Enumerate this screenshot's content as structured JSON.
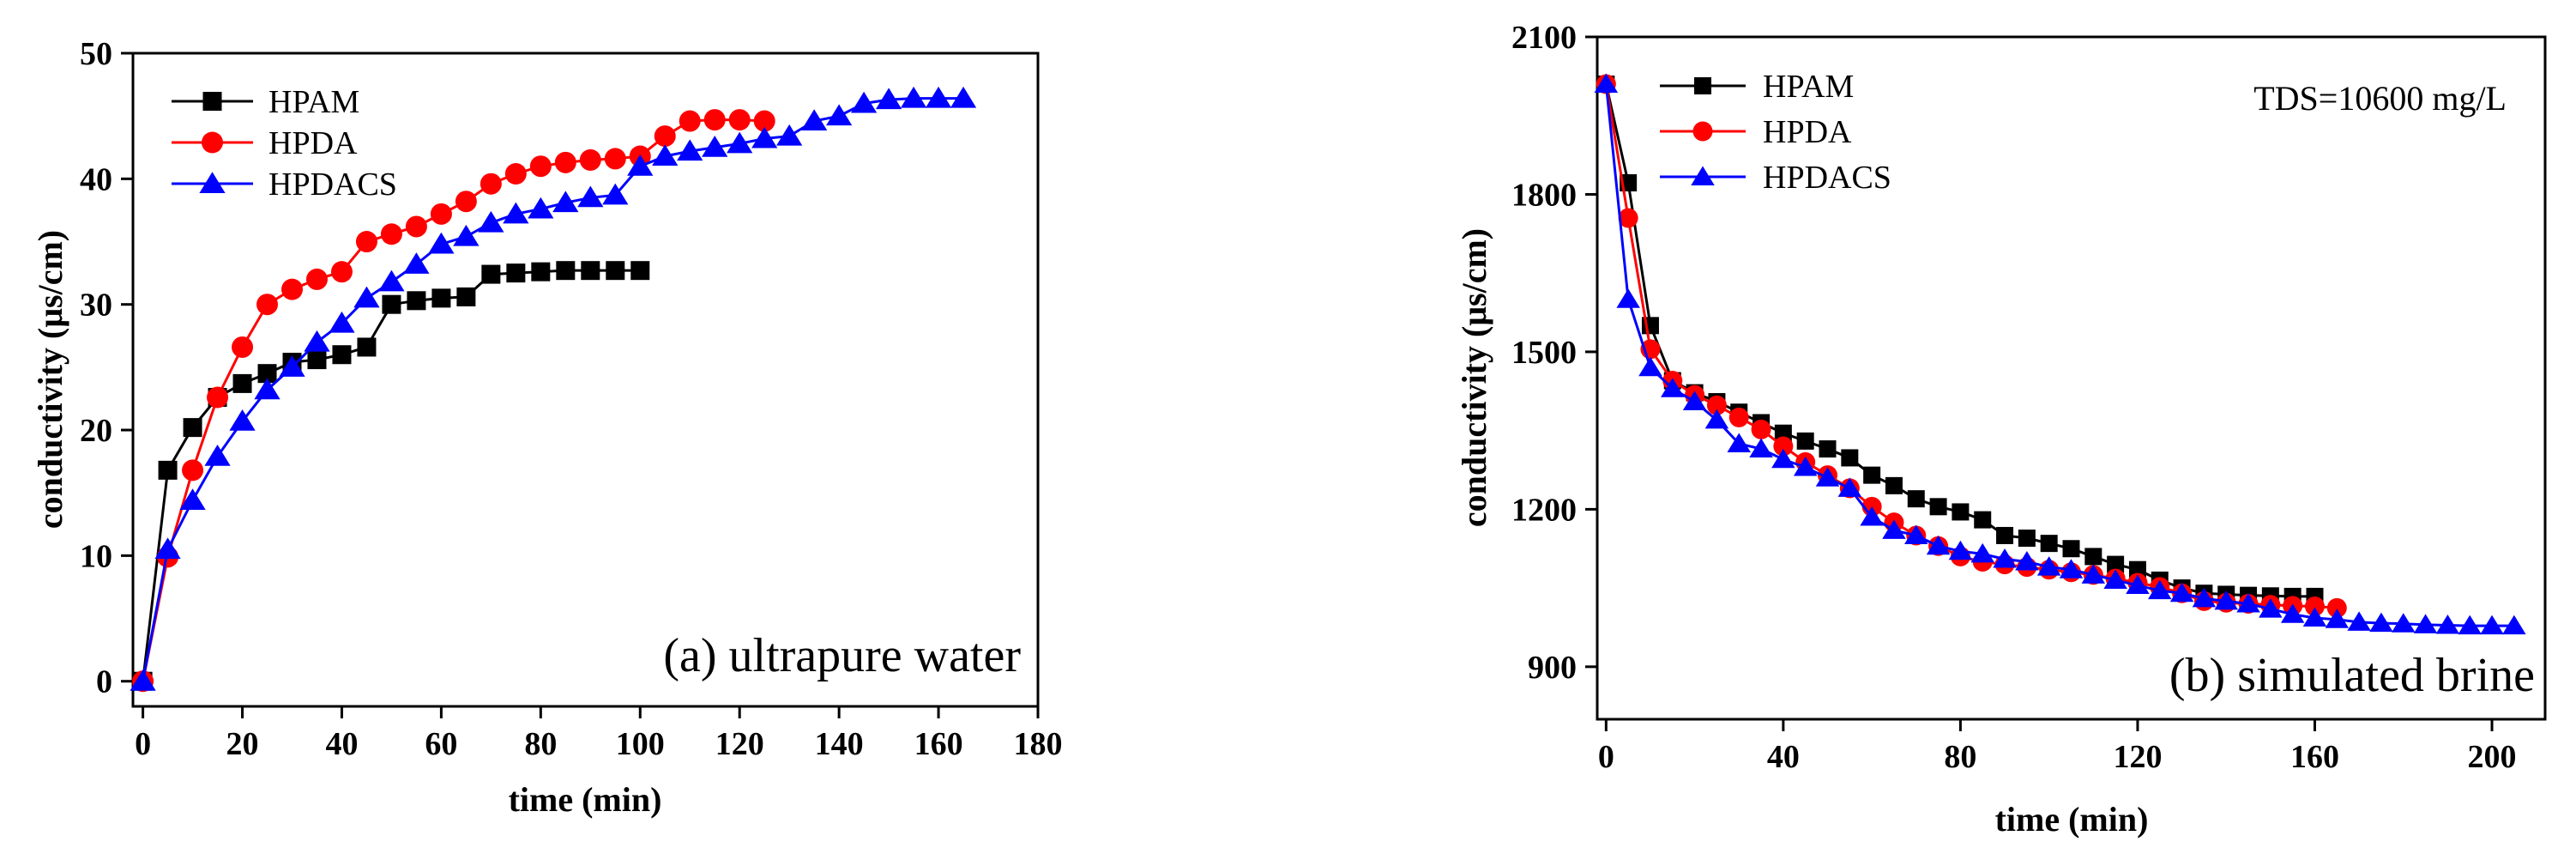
{
  "chart_data": [
    {
      "type": "line",
      "panel_label": "(a) ultrapure water",
      "xlabel": "time (min)",
      "ylabel": "conductivity (μs/cm)",
      "xlim": [
        -2,
        180
      ],
      "ylim": [
        -2,
        50
      ],
      "xticks": [
        0,
        20,
        40,
        60,
        80,
        100,
        120,
        140,
        160,
        180
      ],
      "yticks": [
        0,
        10,
        20,
        30,
        40,
        50
      ],
      "legend_position": "top-left",
      "series": [
        {
          "name": "HPAM",
          "color": "#000000",
          "marker": "square",
          "x": [
            0,
            5,
            10,
            15,
            20,
            25,
            30,
            35,
            40,
            45,
            50,
            55,
            60,
            65,
            70,
            75,
            80,
            85,
            90,
            95,
            100
          ],
          "y": [
            0,
            16.8,
            20.2,
            22.6,
            23.7,
            24.5,
            25.4,
            25.6,
            26.0,
            26.6,
            30.0,
            30.3,
            30.5,
            30.6,
            32.4,
            32.5,
            32.6,
            32.7,
            32.7,
            32.7,
            32.7
          ]
        },
        {
          "name": "HPDA",
          "color": "#ff0000",
          "marker": "circle",
          "x": [
            0,
            5,
            10,
            15,
            20,
            25,
            30,
            35,
            40,
            45,
            50,
            55,
            60,
            65,
            70,
            75,
            80,
            85,
            90,
            95,
            100,
            105,
            110,
            115,
            120,
            125
          ],
          "y": [
            0,
            9.9,
            16.8,
            22.6,
            26.6,
            30.0,
            31.2,
            32.0,
            32.6,
            35.0,
            35.6,
            36.2,
            37.2,
            38.2,
            39.6,
            40.4,
            41.0,
            41.3,
            41.5,
            41.6,
            41.8,
            43.4,
            44.6,
            44.7,
            44.7,
            44.6
          ]
        },
        {
          "name": "HPDACS",
          "color": "#0000ff",
          "marker": "triangle",
          "x": [
            0,
            5,
            10,
            15,
            20,
            25,
            30,
            35,
            40,
            45,
            50,
            55,
            60,
            65,
            70,
            75,
            80,
            85,
            90,
            95,
            100,
            105,
            110,
            115,
            120,
            125,
            130,
            135,
            140,
            145,
            150,
            155,
            160,
            165
          ],
          "y": [
            0,
            10.5,
            14.4,
            17.9,
            20.7,
            23.2,
            25.0,
            27.0,
            28.5,
            30.5,
            31.8,
            33.2,
            34.8,
            35.4,
            36.5,
            37.2,
            37.6,
            38.1,
            38.5,
            38.7,
            41.0,
            41.8,
            42.2,
            42.5,
            42.8,
            43.2,
            43.4,
            44.6,
            45.0,
            46.0,
            46.3,
            46.4,
            46.4,
            46.4
          ]
        }
      ]
    },
    {
      "type": "line",
      "panel_label": "(b) simulated brine",
      "annotation": "TDS=10600 mg/L",
      "xlabel": "time (min)",
      "ylabel": "conductivity (μs/cm)",
      "xlim": [
        -2,
        212
      ],
      "ylim": [
        800,
        2100
      ],
      "xticks": [
        0,
        40,
        80,
        120,
        160,
        200
      ],
      "yticks": [
        900,
        1200,
        1500,
        1800,
        2100
      ],
      "legend_position": "top-left",
      "series": [
        {
          "name": "HPAM",
          "color": "#000000",
          "marker": "square",
          "x": [
            0,
            5,
            10,
            15,
            20,
            25,
            30,
            35,
            40,
            45,
            50,
            55,
            60,
            65,
            70,
            75,
            80,
            85,
            90,
            95,
            100,
            105,
            110,
            115,
            120,
            125,
            130,
            135,
            140,
            145,
            150,
            155,
            160
          ],
          "y": [
            2010,
            1822,
            1550,
            1445,
            1422,
            1405,
            1385,
            1365,
            1345,
            1330,
            1315,
            1298,
            1265,
            1245,
            1220,
            1205,
            1195,
            1180,
            1150,
            1145,
            1135,
            1125,
            1110,
            1095,
            1085,
            1065,
            1050,
            1040,
            1038,
            1036,
            1035,
            1034,
            1034
          ]
        },
        {
          "name": "HPDA",
          "color": "#ff0000",
          "marker": "circle",
          "x": [
            0,
            5,
            10,
            15,
            20,
            25,
            30,
            35,
            40,
            45,
            50,
            55,
            60,
            65,
            70,
            75,
            80,
            85,
            90,
            95,
            100,
            105,
            110,
            115,
            120,
            125,
            130,
            135,
            140,
            145,
            150,
            155,
            160,
            165
          ],
          "y": [
            2010,
            1755,
            1505,
            1445,
            1418,
            1398,
            1375,
            1352,
            1320,
            1290,
            1265,
            1240,
            1205,
            1175,
            1150,
            1130,
            1110,
            1100,
            1095,
            1090,
            1085,
            1080,
            1075,
            1068,
            1060,
            1052,
            1040,
            1025,
            1022,
            1020,
            1018,
            1016,
            1015,
            1012
          ]
        },
        {
          "name": "HPDACS",
          "color": "#0000ff",
          "marker": "triangle",
          "x": [
            0,
            5,
            10,
            15,
            20,
            25,
            30,
            35,
            40,
            45,
            50,
            55,
            60,
            65,
            70,
            75,
            80,
            85,
            90,
            95,
            100,
            105,
            110,
            115,
            120,
            125,
            130,
            135,
            140,
            145,
            150,
            155,
            160,
            165,
            170,
            175,
            180,
            185,
            190,
            195,
            200,
            205
          ],
          "y": [
            2010,
            1600,
            1470,
            1430,
            1405,
            1370,
            1325,
            1315,
            1295,
            1280,
            1260,
            1240,
            1185,
            1160,
            1150,
            1130,
            1120,
            1115,
            1105,
            1100,
            1090,
            1085,
            1075,
            1065,
            1055,
            1045,
            1040,
            1030,
            1025,
            1020,
            1010,
            1000,
            993,
            990,
            985,
            983,
            982,
            980,
            979,
            978,
            978,
            978
          ]
        }
      ]
    }
  ]
}
